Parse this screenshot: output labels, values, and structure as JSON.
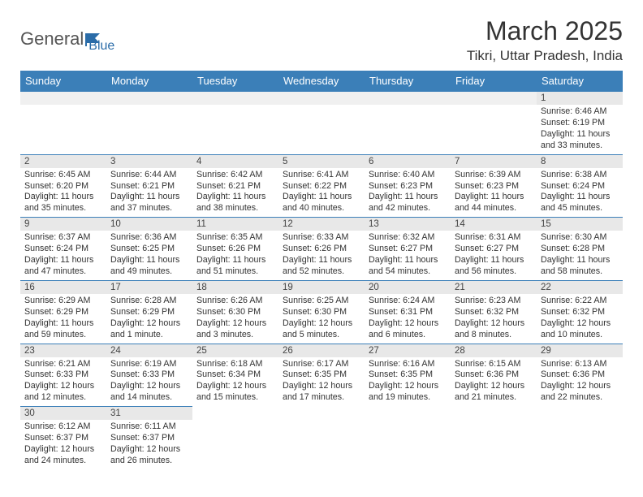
{
  "logo": {
    "part1": "General",
    "part2": "Blue"
  },
  "title": "March 2025",
  "location": "Tikri, Uttar Pradesh, India",
  "colors": {
    "header_bg": "#3b7fb8",
    "header_text": "#ffffff",
    "daynum_bg": "#e8e8e8",
    "border": "#3b7fb8",
    "logo_blue": "#2b6ca8"
  },
  "weekdays": [
    "Sunday",
    "Monday",
    "Tuesday",
    "Wednesday",
    "Thursday",
    "Friday",
    "Saturday"
  ],
  "days": {
    "1": {
      "sunrise": "6:46 AM",
      "sunset": "6:19 PM",
      "daylight": "11 hours and 33 minutes."
    },
    "2": {
      "sunrise": "6:45 AM",
      "sunset": "6:20 PM",
      "daylight": "11 hours and 35 minutes."
    },
    "3": {
      "sunrise": "6:44 AM",
      "sunset": "6:21 PM",
      "daylight": "11 hours and 37 minutes."
    },
    "4": {
      "sunrise": "6:42 AM",
      "sunset": "6:21 PM",
      "daylight": "11 hours and 38 minutes."
    },
    "5": {
      "sunrise": "6:41 AM",
      "sunset": "6:22 PM",
      "daylight": "11 hours and 40 minutes."
    },
    "6": {
      "sunrise": "6:40 AM",
      "sunset": "6:23 PM",
      "daylight": "11 hours and 42 minutes."
    },
    "7": {
      "sunrise": "6:39 AM",
      "sunset": "6:23 PM",
      "daylight": "11 hours and 44 minutes."
    },
    "8": {
      "sunrise": "6:38 AM",
      "sunset": "6:24 PM",
      "daylight": "11 hours and 45 minutes."
    },
    "9": {
      "sunrise": "6:37 AM",
      "sunset": "6:24 PM",
      "daylight": "11 hours and 47 minutes."
    },
    "10": {
      "sunrise": "6:36 AM",
      "sunset": "6:25 PM",
      "daylight": "11 hours and 49 minutes."
    },
    "11": {
      "sunrise": "6:35 AM",
      "sunset": "6:26 PM",
      "daylight": "11 hours and 51 minutes."
    },
    "12": {
      "sunrise": "6:33 AM",
      "sunset": "6:26 PM",
      "daylight": "11 hours and 52 minutes."
    },
    "13": {
      "sunrise": "6:32 AM",
      "sunset": "6:27 PM",
      "daylight": "11 hours and 54 minutes."
    },
    "14": {
      "sunrise": "6:31 AM",
      "sunset": "6:27 PM",
      "daylight": "11 hours and 56 minutes."
    },
    "15": {
      "sunrise": "6:30 AM",
      "sunset": "6:28 PM",
      "daylight": "11 hours and 58 minutes."
    },
    "16": {
      "sunrise": "6:29 AM",
      "sunset": "6:29 PM",
      "daylight": "11 hours and 59 minutes."
    },
    "17": {
      "sunrise": "6:28 AM",
      "sunset": "6:29 PM",
      "daylight": "12 hours and 1 minute."
    },
    "18": {
      "sunrise": "6:26 AM",
      "sunset": "6:30 PM",
      "daylight": "12 hours and 3 minutes."
    },
    "19": {
      "sunrise": "6:25 AM",
      "sunset": "6:30 PM",
      "daylight": "12 hours and 5 minutes."
    },
    "20": {
      "sunrise": "6:24 AM",
      "sunset": "6:31 PM",
      "daylight": "12 hours and 6 minutes."
    },
    "21": {
      "sunrise": "6:23 AM",
      "sunset": "6:32 PM",
      "daylight": "12 hours and 8 minutes."
    },
    "22": {
      "sunrise": "6:22 AM",
      "sunset": "6:32 PM",
      "daylight": "12 hours and 10 minutes."
    },
    "23": {
      "sunrise": "6:21 AM",
      "sunset": "6:33 PM",
      "daylight": "12 hours and 12 minutes."
    },
    "24": {
      "sunrise": "6:19 AM",
      "sunset": "6:33 PM",
      "daylight": "12 hours and 14 minutes."
    },
    "25": {
      "sunrise": "6:18 AM",
      "sunset": "6:34 PM",
      "daylight": "12 hours and 15 minutes."
    },
    "26": {
      "sunrise": "6:17 AM",
      "sunset": "6:35 PM",
      "daylight": "12 hours and 17 minutes."
    },
    "27": {
      "sunrise": "6:16 AM",
      "sunset": "6:35 PM",
      "daylight": "12 hours and 19 minutes."
    },
    "28": {
      "sunrise": "6:15 AM",
      "sunset": "6:36 PM",
      "daylight": "12 hours and 21 minutes."
    },
    "29": {
      "sunrise": "6:13 AM",
      "sunset": "6:36 PM",
      "daylight": "12 hours and 22 minutes."
    },
    "30": {
      "sunrise": "6:12 AM",
      "sunset": "6:37 PM",
      "daylight": "12 hours and 24 minutes."
    },
    "31": {
      "sunrise": "6:11 AM",
      "sunset": "6:37 PM",
      "daylight": "12 hours and 26 minutes."
    }
  },
  "layout": [
    [
      null,
      null,
      null,
      null,
      null,
      null,
      "1"
    ],
    [
      "2",
      "3",
      "4",
      "5",
      "6",
      "7",
      "8"
    ],
    [
      "9",
      "10",
      "11",
      "12",
      "13",
      "14",
      "15"
    ],
    [
      "16",
      "17",
      "18",
      "19",
      "20",
      "21",
      "22"
    ],
    [
      "23",
      "24",
      "25",
      "26",
      "27",
      "28",
      "29"
    ],
    [
      "30",
      "31",
      null,
      null,
      null,
      null,
      null
    ]
  ],
  "labels": {
    "sunrise": "Sunrise:",
    "sunset": "Sunset:",
    "daylight": "Daylight:"
  }
}
